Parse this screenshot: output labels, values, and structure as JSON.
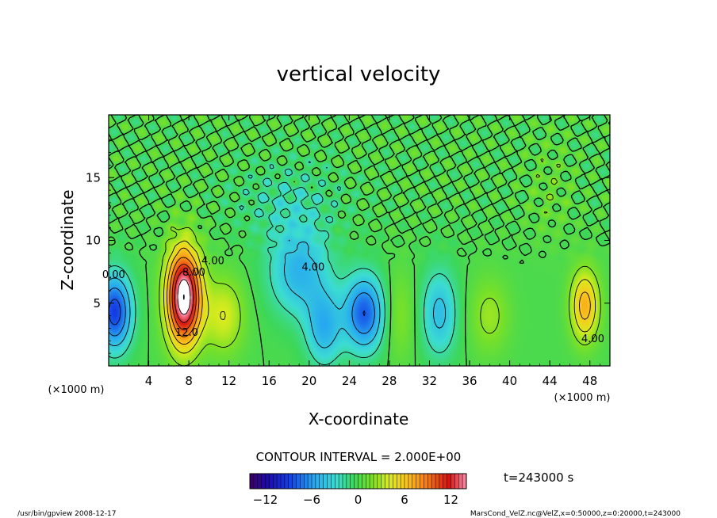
{
  "chart_data": {
    "type": "heatmap",
    "title": "vertical velocity",
    "xlabel": "X-coordinate",
    "ylabel": "Z-coordinate",
    "x_unit": "(×1000 m)",
    "y_unit": "(×1000 m)",
    "xlim": [
      0,
      50
    ],
    "ylim": [
      0,
      20
    ],
    "xticks": [
      4,
      8,
      12,
      16,
      20,
      24,
      28,
      32,
      36,
      40,
      44,
      48
    ],
    "yticks": [
      5,
      10,
      15
    ],
    "contour_interval_text": "CONTOUR INTERVAL = 2.000E+00",
    "time_label": "t=243000 s",
    "colorbar": {
      "range": [
        -14,
        14
      ],
      "ticks": [
        -12,
        -6,
        0,
        6,
        12
      ]
    },
    "contour_labels": [
      {
        "text": "8.00",
        "x": 8.5,
        "z": 7.2
      },
      {
        "text": "12.0",
        "x": 7.8,
        "z": 2.4
      },
      {
        "text": "4.00",
        "x": 10.4,
        "z": 8.1
      },
      {
        "text": "4.00",
        "x": 20.4,
        "z": 7.6
      },
      {
        "text": "4.00",
        "x": 48.3,
        "z": 1.9
      },
      {
        "text": "0.00",
        "x": 0.5,
        "z": 7.0
      }
    ],
    "features": [
      {
        "x": 7.5,
        "z": 5.5,
        "sx": 1.7,
        "sz": 3.8,
        "amp": 16.0
      },
      {
        "x": 0.6,
        "z": 4.3,
        "sx": 1.7,
        "sz": 3.0,
        "amp": -9.0
      },
      {
        "x": 11.5,
        "z": 4.0,
        "sx": 2.0,
        "sz": 3.0,
        "amp": 4.0
      },
      {
        "x": 19.0,
        "z": 7.5,
        "sx": 3.0,
        "sz": 3.5,
        "amp": -5.0
      },
      {
        "x": 18.0,
        "z": 13.0,
        "sx": 5.0,
        "sz": 3.0,
        "amp": -2.0
      },
      {
        "x": 21.5,
        "z": 3.0,
        "sx": 1.8,
        "sz": 3.0,
        "amp": -5.0
      },
      {
        "x": 25.5,
        "z": 4.2,
        "sx": 2.0,
        "sz": 3.0,
        "amp": -8.0
      },
      {
        "x": 29.0,
        "z": 4.0,
        "sx": 1.5,
        "sz": 3.5,
        "amp": 2.0
      },
      {
        "x": 33.0,
        "z": 4.2,
        "sx": 1.8,
        "sz": 3.5,
        "amp": -4.5
      },
      {
        "x": 38.0,
        "z": 4.0,
        "sx": 2.0,
        "sz": 3.0,
        "amp": 2.5
      },
      {
        "x": 47.5,
        "z": 4.8,
        "sx": 1.4,
        "sz": 2.8,
        "amp": 7.0
      },
      {
        "x": 44.0,
        "z": 14.0,
        "sx": 2.0,
        "sz": 4.0,
        "amp": 1.0
      }
    ],
    "grid": false,
    "contour_lines": true
  },
  "footer": {
    "left": "/usr/bin/gpview   2008-12-17",
    "right": "MarsCond_VelZ.nc@VelZ,x=0:50000,z=0:20000,t=243000"
  }
}
